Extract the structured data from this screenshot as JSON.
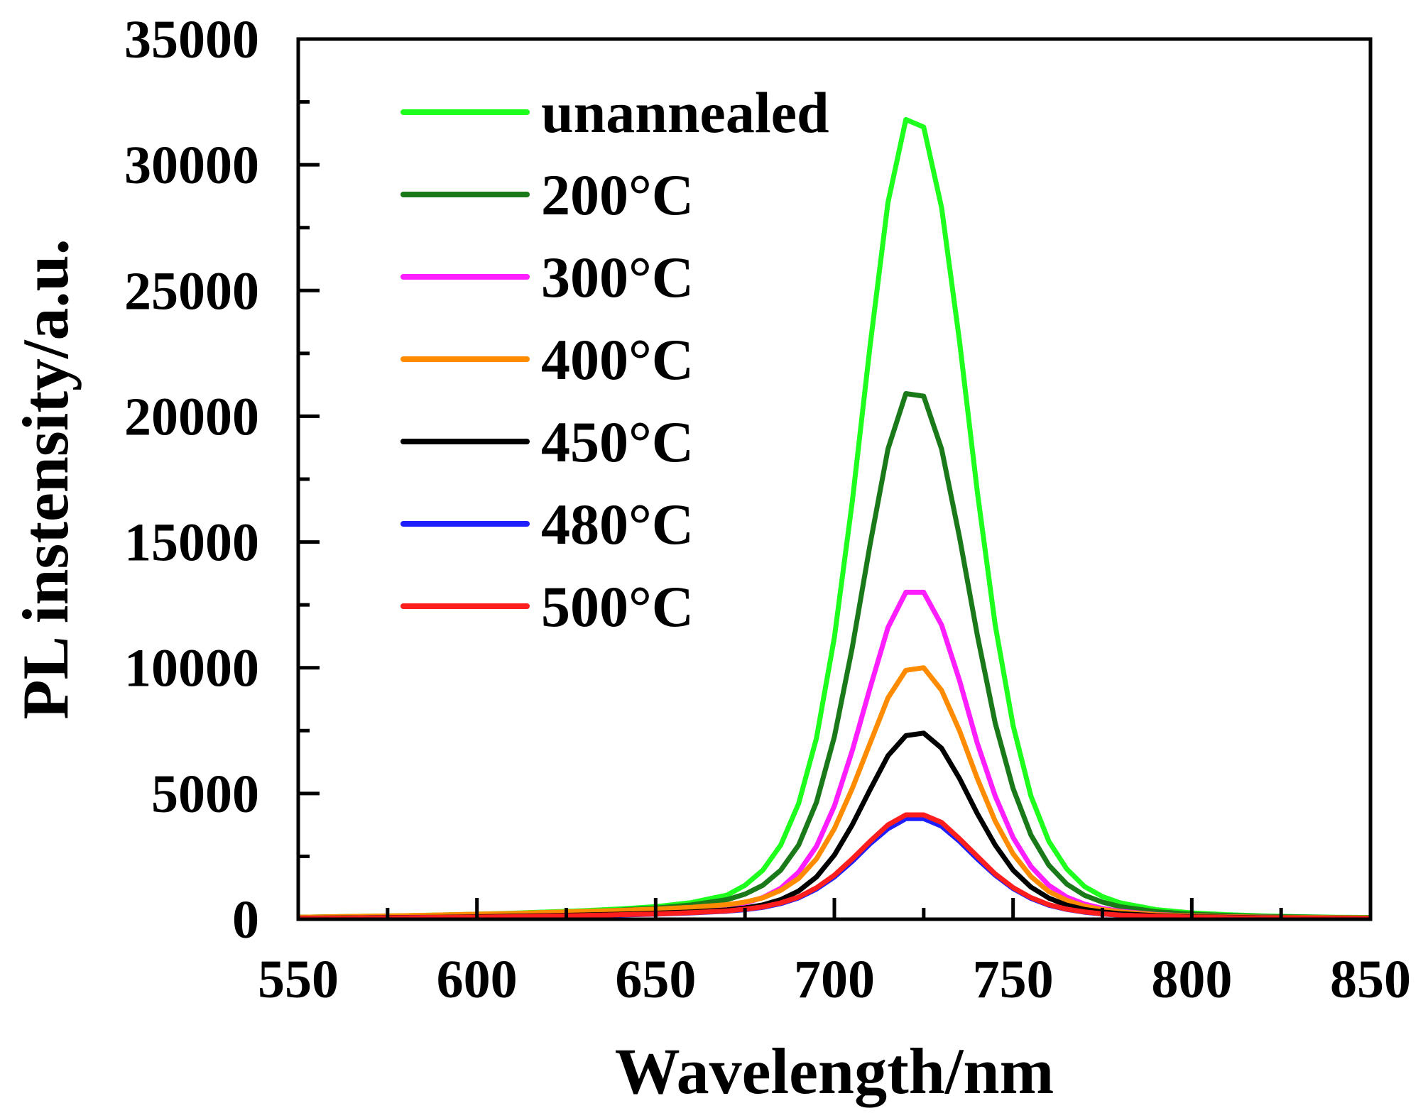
{
  "chart_data": {
    "type": "line",
    "title": "",
    "xlabel": "Wavelength/nm",
    "ylabel": "PL instensity/a.u.",
    "xlim": [
      550,
      850
    ],
    "ylim": [
      0,
      35000
    ],
    "x_ticks": [
      550,
      600,
      650,
      700,
      750,
      800,
      850
    ],
    "x_tick_labels": [
      "550",
      "600",
      "650",
      "700",
      "750",
      "800",
      "850"
    ],
    "y_ticks": [
      0,
      5000,
      10000,
      15000,
      20000,
      25000,
      30000,
      35000
    ],
    "y_tick_labels": [
      "0",
      "5000",
      "10000",
      "15000",
      "20000",
      "25000",
      "30000",
      "35000"
    ],
    "legend_position": "top-left",
    "x": [
      550,
      560,
      570,
      580,
      590,
      600,
      610,
      620,
      630,
      640,
      650,
      660,
      670,
      675,
      680,
      685,
      690,
      695,
      700,
      705,
      710,
      715,
      720,
      725,
      730,
      735,
      740,
      745,
      750,
      755,
      760,
      765,
      770,
      775,
      780,
      790,
      800,
      810,
      820,
      830,
      840,
      850
    ],
    "series": [
      {
        "name": "unannealed",
        "color": "#1EFF1E",
        "values": [
          80,
          100,
          120,
          140,
          170,
          200,
          240,
          290,
          340,
          410,
          500,
          660,
          960,
          1350,
          1950,
          2950,
          4600,
          7200,
          11200,
          16600,
          22800,
          28500,
          31800,
          31500,
          28300,
          23000,
          17000,
          11700,
          7700,
          4900,
          3100,
          2000,
          1300,
          900,
          650,
          380,
          250,
          180,
          130,
          100,
          80,
          70
        ]
      },
      {
        "name": "200°C",
        "color": "#1A7A1A",
        "values": [
          80,
          100,
          110,
          130,
          150,
          180,
          210,
          250,
          300,
          360,
          440,
          570,
          780,
          1000,
          1350,
          1950,
          2950,
          4650,
          7250,
          10800,
          14900,
          18700,
          20900,
          20800,
          18700,
          15200,
          11300,
          7800,
          5200,
          3350,
          2150,
          1400,
          950,
          680,
          500,
          300,
          200,
          150,
          110,
          90,
          70,
          60
        ]
      },
      {
        "name": "300°C",
        "color": "#FF1EFF",
        "values": [
          40,
          50,
          60,
          70,
          90,
          110,
          130,
          160,
          190,
          230,
          280,
          360,
          500,
          640,
          860,
          1230,
          1870,
          2900,
          4500,
          6700,
          9200,
          11600,
          13000,
          13000,
          11700,
          9500,
          7000,
          4900,
          3250,
          2100,
          1350,
          880,
          600,
          430,
          320,
          190,
          130,
          100,
          80,
          60,
          50,
          40
        ]
      },
      {
        "name": "400°C",
        "color": "#FF8C00",
        "values": [
          80,
          100,
          120,
          140,
          170,
          200,
          230,
          270,
          310,
          350,
          400,
          470,
          580,
          680,
          850,
          1150,
          1620,
          2400,
          3600,
          5200,
          7000,
          8800,
          9900,
          10000,
          9100,
          7500,
          5600,
          3900,
          2600,
          1700,
          1100,
          750,
          520,
          380,
          290,
          180,
          130,
          100,
          80,
          70,
          60,
          55
        ]
      },
      {
        "name": "450°C",
        "color": "#000000",
        "values": [
          40,
          50,
          60,
          70,
          80,
          100,
          120,
          140,
          170,
          200,
          240,
          290,
          370,
          450,
          570,
          780,
          1120,
          1680,
          2550,
          3750,
          5150,
          6500,
          7300,
          7400,
          6800,
          5600,
          4200,
          2950,
          1950,
          1280,
          840,
          560,
          390,
          290,
          220,
          140,
          100,
          80,
          60,
          50,
          40,
          35
        ]
      },
      {
        "name": "480°C",
        "color": "#1E1EFF",
        "values": [
          30,
          40,
          50,
          60,
          70,
          80,
          100,
          120,
          140,
          170,
          200,
          250,
          320,
          380,
          470,
          620,
          850,
          1200,
          1680,
          2300,
          3000,
          3600,
          4000,
          4000,
          3700,
          3100,
          2400,
          1750,
          1220,
          830,
          560,
          390,
          280,
          210,
          160,
          110,
          80,
          60,
          50,
          40,
          35,
          30
        ]
      },
      {
        "name": "500°C",
        "color": "#FF1E1E",
        "values": [
          30,
          40,
          50,
          60,
          70,
          85,
          100,
          125,
          150,
          180,
          210,
          260,
          330,
          400,
          490,
          650,
          880,
          1250,
          1750,
          2400,
          3100,
          3750,
          4150,
          4150,
          3850,
          3200,
          2500,
          1800,
          1260,
          860,
          580,
          400,
          290,
          215,
          165,
          115,
          85,
          65,
          52,
          42,
          36,
          30
        ]
      }
    ]
  }
}
